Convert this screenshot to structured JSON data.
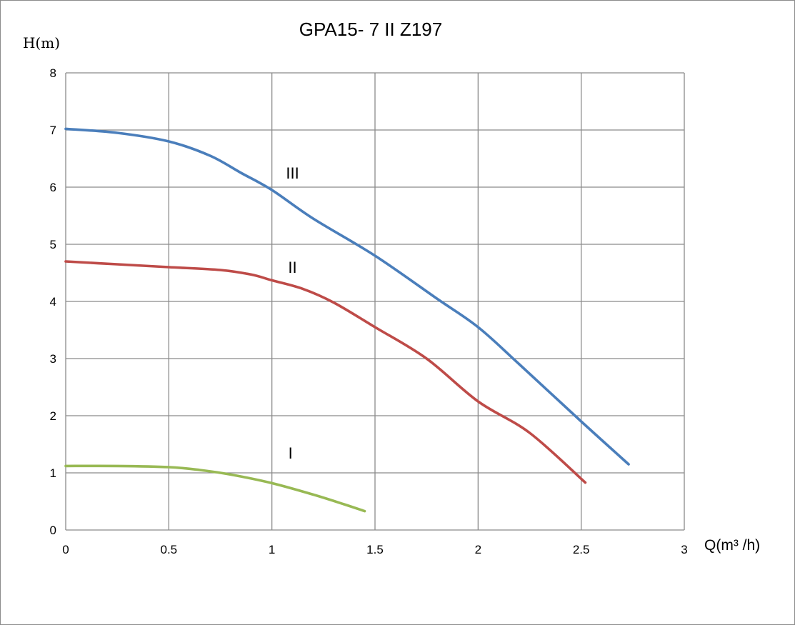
{
  "chart_data": {
    "type": "line",
    "title": "GPA15- 7  II  Z197",
    "ylabel": "H(m)",
    "xlabel": "Q(m³ /h)",
    "xlim": [
      0,
      3
    ],
    "ylim": [
      0,
      8
    ],
    "xticks": [
      "0",
      "0.5",
      "1",
      "1.5",
      "2",
      "2.5",
      "3"
    ],
    "yticks": [
      "0",
      "1",
      "2",
      "3",
      "4",
      "5",
      "6",
      "7",
      "8"
    ],
    "grid": true,
    "series": [
      {
        "name": "III",
        "color": "#4a7ebb",
        "x": [
          0,
          0.25,
          0.5,
          0.7,
          0.85,
          1.0,
          1.2,
          1.5,
          1.8,
          2.0,
          2.2,
          2.5,
          2.73
        ],
        "y": [
          7.02,
          6.95,
          6.8,
          6.55,
          6.25,
          5.95,
          5.45,
          4.8,
          4.05,
          3.55,
          2.9,
          1.9,
          1.15
        ]
      },
      {
        "name": "II",
        "color": "#be4b48",
        "x": [
          0,
          0.25,
          0.5,
          0.75,
          0.9,
          1.0,
          1.15,
          1.3,
          1.5,
          1.75,
          2.0,
          2.25,
          2.52
        ],
        "y": [
          4.7,
          4.65,
          4.6,
          4.55,
          4.47,
          4.37,
          4.22,
          3.98,
          3.55,
          3.0,
          2.25,
          1.7,
          0.83
        ]
      },
      {
        "name": "I",
        "color": "#98b954",
        "x": [
          0,
          0.25,
          0.5,
          0.65,
          0.8,
          1.0,
          1.2,
          1.35,
          1.45
        ],
        "y": [
          1.12,
          1.12,
          1.1,
          1.05,
          0.97,
          0.82,
          0.62,
          0.45,
          0.33
        ]
      }
    ],
    "curve_labels": [
      {
        "text": "III",
        "series": "III"
      },
      {
        "text": "II",
        "series": "II"
      },
      {
        "text": "I",
        "series": "I"
      }
    ]
  }
}
